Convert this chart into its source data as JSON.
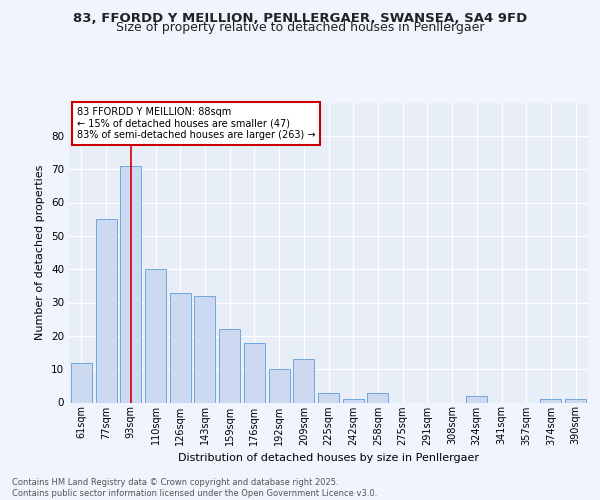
{
  "title_line1": "83, FFORDD Y MEILLION, PENLLERGAER, SWANSEA, SA4 9FD",
  "title_line2": "Size of property relative to detached houses in Penllergaer",
  "xlabel": "Distribution of detached houses by size in Penllergaer",
  "ylabel": "Number of detached properties",
  "categories": [
    "61sqm",
    "77sqm",
    "93sqm",
    "110sqm",
    "126sqm",
    "143sqm",
    "159sqm",
    "176sqm",
    "192sqm",
    "209sqm",
    "225sqm",
    "242sqm",
    "258sqm",
    "275sqm",
    "291sqm",
    "308sqm",
    "324sqm",
    "341sqm",
    "357sqm",
    "374sqm",
    "390sqm"
  ],
  "values": [
    12,
    55,
    71,
    40,
    33,
    32,
    22,
    18,
    10,
    13,
    3,
    1,
    3,
    0,
    0,
    0,
    2,
    0,
    0,
    1,
    1
  ],
  "bar_color": "#ccd9f0",
  "bar_edge_color": "#6fa8dc",
  "bg_color": "#e8eef8",
  "fig_bg_color": "#f0f4fc",
  "annotation_text": "83 FFORDD Y MEILLION: 88sqm\n← 15% of detached houses are smaller (47)\n83% of semi-detached houses are larger (263) →",
  "annotation_box_color": "#ffffff",
  "annotation_box_edge": "#cc0000",
  "vline_x": 2,
  "vline_color": "#cc0000",
  "ylim": [
    0,
    90
  ],
  "yticks": [
    0,
    10,
    20,
    30,
    40,
    50,
    60,
    70,
    80
  ],
  "footer": "Contains HM Land Registry data © Crown copyright and database right 2025.\nContains public sector information licensed under the Open Government Licence v3.0.",
  "grid_color": "#ffffff",
  "title_fontsize": 9.5,
  "subtitle_fontsize": 9,
  "tick_fontsize": 7,
  "ylabel_fontsize": 8,
  "xlabel_fontsize": 8,
  "annotation_fontsize": 7,
  "footer_fontsize": 6
}
